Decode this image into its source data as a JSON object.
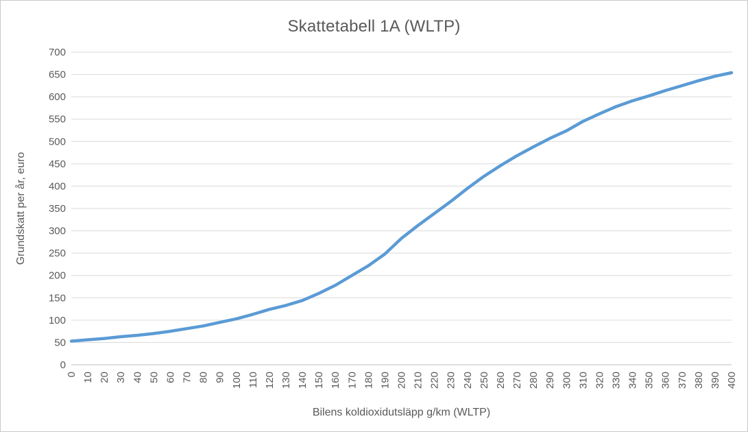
{
  "chart": {
    "title": "Skattetabell 1A (WLTP)"
  },
  "chart_data": {
    "type": "line",
    "title": "Skattetabell 1A (WLTP)",
    "xlabel": "Bilens koldioxidutsläpp g/km (WLTP)",
    "ylabel": "Grundskatt per år, euro",
    "x": [
      0,
      10,
      20,
      30,
      40,
      50,
      60,
      70,
      80,
      90,
      100,
      110,
      120,
      130,
      140,
      150,
      160,
      170,
      180,
      190,
      200,
      210,
      220,
      230,
      240,
      250,
      260,
      270,
      280,
      290,
      300,
      310,
      320,
      330,
      340,
      350,
      360,
      370,
      380,
      390,
      400
    ],
    "series": [
      {
        "name": "Grundskatt per år, euro",
        "values": [
          53,
          56,
          59,
          63,
          66,
          70,
          75,
          81,
          87,
          95,
          103,
          113,
          124,
          133,
          144,
          160,
          178,
          200,
          222,
          248,
          283,
          312,
          339,
          366,
          395,
          422,
          446,
          468,
          488,
          507,
          524,
          545,
          562,
          578,
          591,
          602,
          614,
          625,
          636,
          646,
          654
        ]
      }
    ],
    "xlim": [
      0,
      400
    ],
    "ylim": [
      0,
      700
    ],
    "xticks": [
      0,
      10,
      20,
      30,
      40,
      50,
      60,
      70,
      80,
      90,
      100,
      110,
      120,
      130,
      140,
      150,
      160,
      170,
      180,
      190,
      200,
      210,
      220,
      230,
      240,
      250,
      260,
      270,
      280,
      290,
      300,
      310,
      320,
      330,
      340,
      350,
      360,
      370,
      380,
      390,
      400
    ],
    "yticks": [
      0,
      50,
      100,
      150,
      200,
      250,
      300,
      350,
      400,
      450,
      500,
      550,
      600,
      650,
      700
    ],
    "grid": "horizontal",
    "legend_position": "none",
    "x_tick_rotation_deg": -90,
    "line_color": "#5B9BD5",
    "line_width": 4.5,
    "gridline_color": "#D9D9D9",
    "axis_line_color": "#BFBFBF",
    "text_color": "#595959",
    "background_color": "#FFFFFF"
  }
}
